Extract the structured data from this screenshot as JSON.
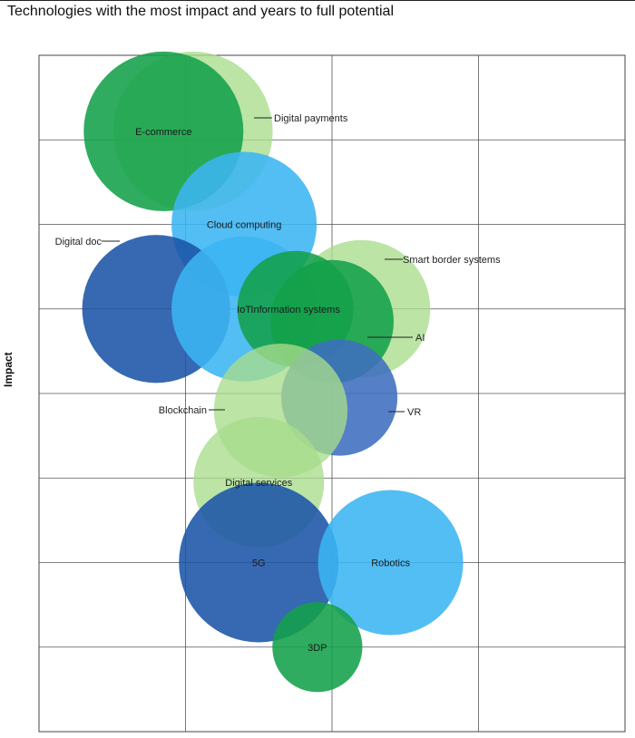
{
  "title": "Technologies with the most impact and years to full potential",
  "colors": {
    "green": "#13a04a",
    "light_green": "#a8dc8c",
    "light_blue": "#3bb5f2",
    "dark_blue": "#1a54a7",
    "mid_blue": "#3d6dbf"
  },
  "chart_data": {
    "type": "bubble",
    "title": "Technologies with the most impact and years to full potential",
    "xlabel": "",
    "ylabel": "Impact",
    "xlim": [
      0,
      4
    ],
    "ylim": [
      0,
      8
    ],
    "grid": true,
    "x_ticks": [
      0,
      1,
      2,
      3,
      4
    ],
    "y_ticks": [
      0,
      1,
      2,
      3,
      4,
      5,
      6,
      7,
      8
    ],
    "points": [
      {
        "label": "Digital payments",
        "x": 1.05,
        "y": 7.1,
        "size": 1.1,
        "color": "light_green",
        "label_mode": "callout"
      },
      {
        "label": "E-commerce",
        "x": 0.85,
        "y": 7.1,
        "size": 1.1,
        "color": "green",
        "label_mode": "inside"
      },
      {
        "label": "Cloud computing",
        "x": 1.4,
        "y": 6.0,
        "size": 1.0,
        "color": "light_blue",
        "label_mode": "inside"
      },
      {
        "label": "Digital doc",
        "x": 0.8,
        "y": 5.0,
        "size": 1.02,
        "color": "dark_blue",
        "label_mode": "callout"
      },
      {
        "label": "IoT",
        "x": 1.4,
        "y": 5.0,
        "size": 1.0,
        "color": "light_blue",
        "label_mode": "inside"
      },
      {
        "label": "Smart border systems",
        "x": 2.2,
        "y": 5.0,
        "size": 0.95,
        "color": "light_green",
        "label_mode": "callout"
      },
      {
        "label": "AI",
        "x": 2.0,
        "y": 4.85,
        "size": 0.85,
        "color": "green",
        "label_mode": "callout"
      },
      {
        "label": "Information systems",
        "x": 1.75,
        "y": 5.0,
        "size": 0.8,
        "color": "green",
        "label_mode": "inside"
      },
      {
        "label": "VR",
        "x": 2.05,
        "y": 3.95,
        "size": 0.8,
        "color": "mid_blue",
        "label_mode": "callout"
      },
      {
        "label": "Blockchain",
        "x": 1.65,
        "y": 3.8,
        "size": 0.92,
        "color": "light_green",
        "label_mode": "callout"
      },
      {
        "label": "Digital services",
        "x": 1.5,
        "y": 2.95,
        "size": 0.9,
        "color": "light_green",
        "label_mode": "inside"
      },
      {
        "label": "5G",
        "x": 1.5,
        "y": 2.0,
        "size": 1.1,
        "color": "dark_blue",
        "label_mode": "inside"
      },
      {
        "label": "Robotics",
        "x": 2.4,
        "y": 2.0,
        "size": 1.0,
        "color": "light_blue",
        "label_mode": "inside"
      },
      {
        "label": "3DP",
        "x": 1.9,
        "y": 1.0,
        "size": 0.62,
        "color": "green",
        "label_mode": "inside"
      }
    ]
  }
}
